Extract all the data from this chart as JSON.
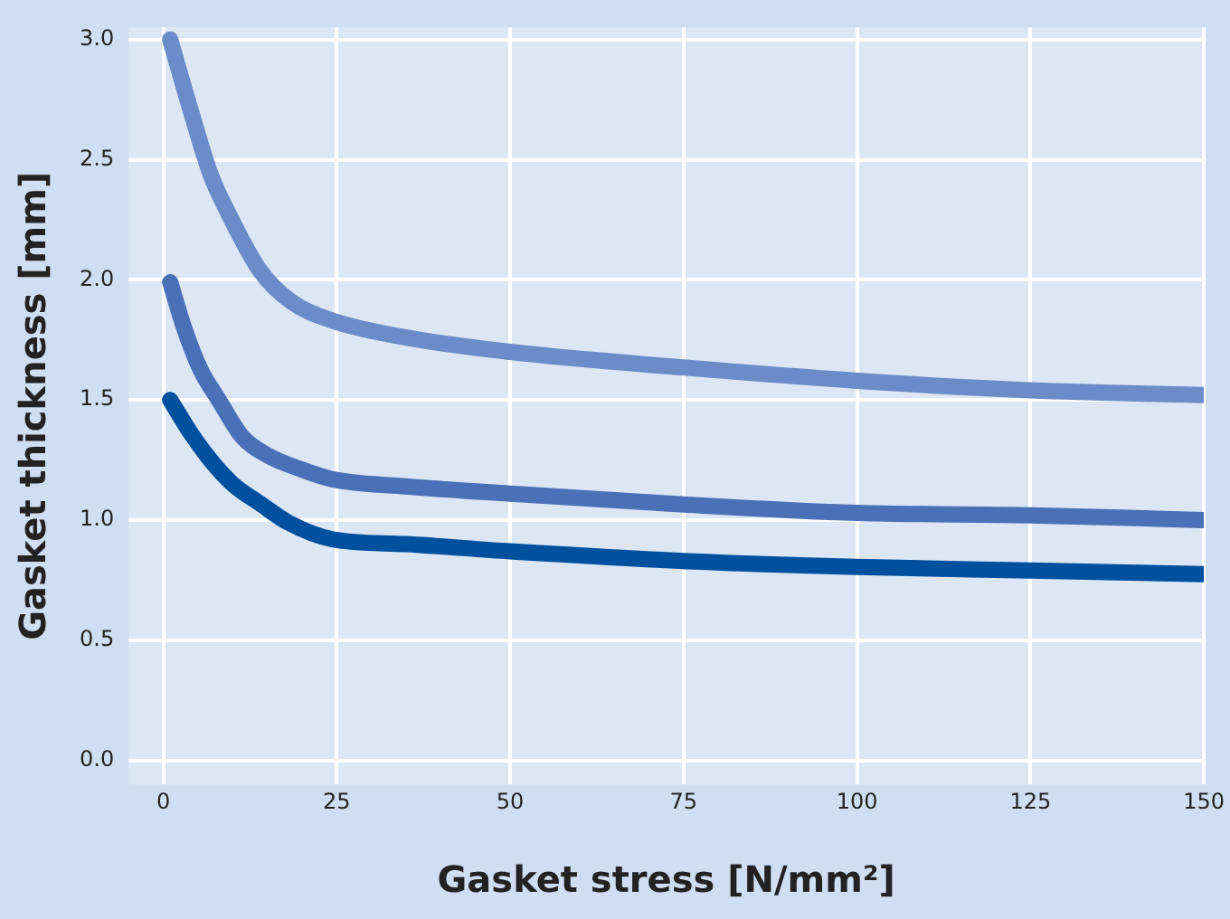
{
  "chart_data": {
    "type": "line",
    "xlabel": "Gasket stress [N/mm²]",
    "ylabel": "Gasket thickness [mm]",
    "xlim": [
      -5,
      150
    ],
    "xticks": [
      0,
      25,
      50,
      75,
      100,
      125,
      150
    ],
    "ylim": [
      -0.1,
      3.05
    ],
    "yticks": [
      {
        "value": 0,
        "label": "0.0"
      },
      {
        "value": 0.5,
        "label": "0.5"
      },
      {
        "value": 1,
        "label": "1.0"
      },
      {
        "value": 1.5,
        "label": "1.5"
      },
      {
        "value": 2,
        "label": "2.0"
      },
      {
        "value": 2.5,
        "label": "2.5"
      },
      {
        "value": 3,
        "label": "3.0"
      }
    ],
    "grid": true,
    "legend": false,
    "marker": "none",
    "line_style": "solid",
    "series": [
      {
        "color": "#6b8cc8",
        "x": [
          1,
          4,
          6.8,
          9.5,
          13.9,
          18.4,
          24.4,
          35,
          50,
          75,
          100,
          125,
          150
        ],
        "values": [
          3.0,
          2.7,
          2.44,
          2.27,
          2.04,
          1.91,
          1.83,
          1.76,
          1.7,
          1.635,
          1.58,
          1.54,
          1.52
        ]
      },
      {
        "color": "#4a70b8",
        "x": [
          1,
          3,
          5.3,
          8,
          11.3,
          15,
          20,
          24.4,
          35,
          50,
          75,
          100,
          125,
          150
        ],
        "values": [
          1.99,
          1.8,
          1.63,
          1.5,
          1.35,
          1.27,
          1.21,
          1.17,
          1.14,
          1.11,
          1.065,
          1.03,
          1.02,
          1.0
        ]
      },
      {
        "color": "#0050a0",
        "x": [
          1,
          4,
          6.8,
          10,
          13.9,
          18,
          24.4,
          35,
          50,
          75,
          100,
          125,
          150
        ],
        "values": [
          1.5,
          1.36,
          1.25,
          1.15,
          1.07,
          0.99,
          0.92,
          0.9,
          0.87,
          0.83,
          0.805,
          0.79,
          0.775
        ]
      }
    ]
  }
}
